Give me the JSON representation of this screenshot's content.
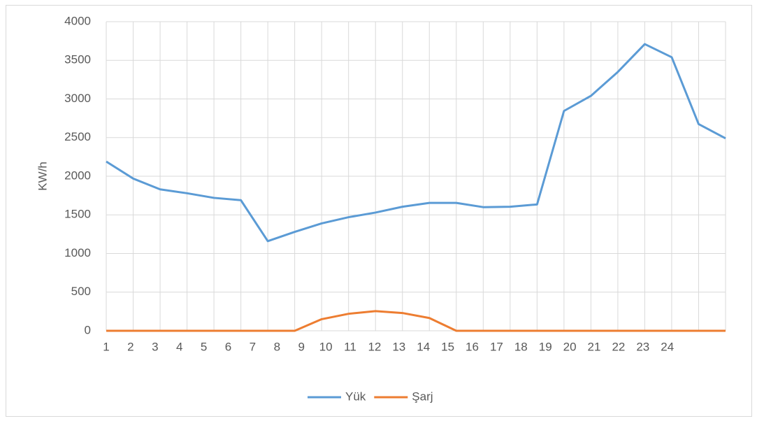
{
  "chart_data": {
    "type": "line",
    "ylabel": "KW/h",
    "categories": [
      "1",
      "2",
      "3",
      "4",
      "5",
      "6",
      "7",
      "8",
      "9",
      "10",
      "11",
      "12",
      "13",
      "14",
      "15",
      "16",
      "17",
      "18",
      "19",
      "20",
      "21",
      "22",
      "23",
      "24"
    ],
    "series": [
      {
        "name": "Yük",
        "color": "#5b9bd5",
        "values": [
          2190,
          1970,
          1830,
          1780,
          1720,
          1690,
          1160,
          1280,
          1390,
          1470,
          1530,
          1605,
          1655,
          1655,
          1600,
          1605,
          1635,
          2845,
          3040,
          3350,
          3710,
          3540,
          2675,
          2490
        ]
      },
      {
        "name": "Şarj",
        "color": "#ed7d31",
        "values": [
          0,
          0,
          0,
          0,
          0,
          0,
          0,
          0,
          150,
          220,
          255,
          230,
          165,
          0,
          0,
          0,
          0,
          0,
          0,
          0,
          0,
          0,
          0,
          0
        ]
      }
    ],
    "ylim": [
      0,
      4000
    ],
    "yticks": [
      0,
      500,
      1000,
      1500,
      2000,
      2500,
      3000,
      3500,
      4000
    ],
    "grid": true,
    "legend": "bottom"
  }
}
